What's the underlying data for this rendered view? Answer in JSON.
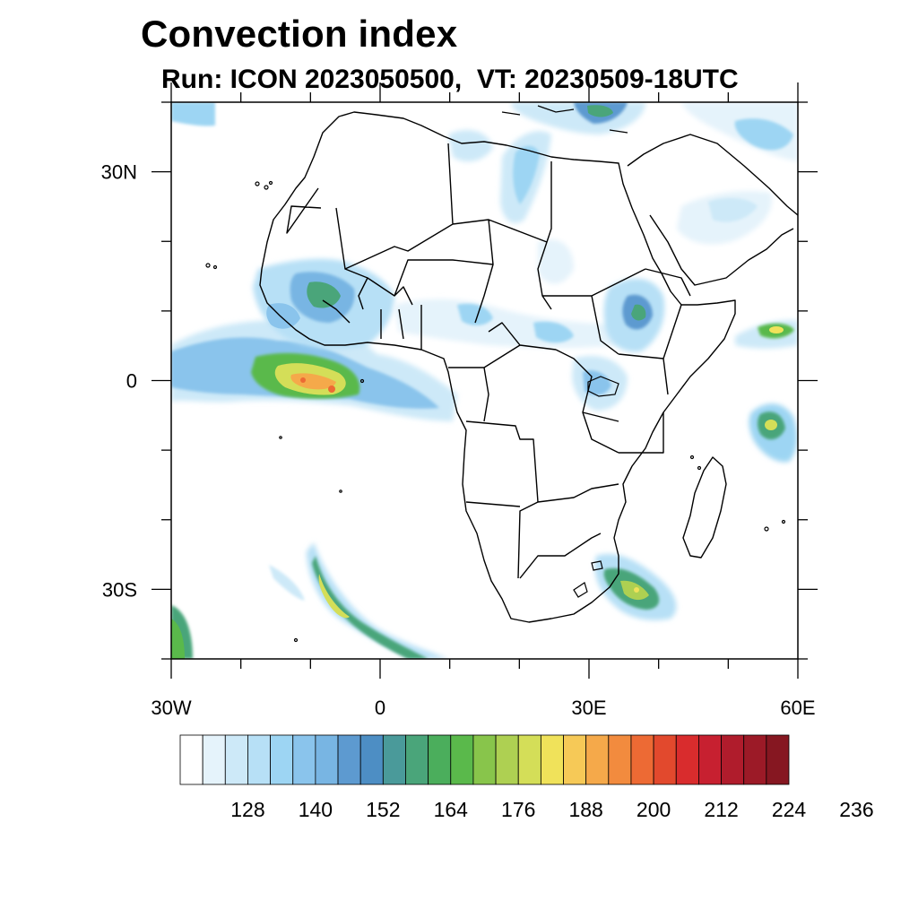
{
  "title": "Convection index",
  "subtitle": "Run: ICON 2023050500,  VT: 20230509-18UTC",
  "map": {
    "lon_range": [
      -30,
      60
    ],
    "lat_range": [
      -40,
      40
    ],
    "lat_ticks": [
      {
        "value": 30,
        "label": "30N"
      },
      {
        "value": 0,
        "label": "0"
      },
      {
        "value": -30,
        "label": "30S"
      }
    ],
    "lon_ticks": [
      {
        "value": -30,
        "label": "30W"
      },
      {
        "value": 0,
        "label": "0"
      },
      {
        "value": 30,
        "label": "30E"
      },
      {
        "value": 60,
        "label": "60E"
      }
    ],
    "minor_tick_step_deg": 10,
    "convection_areas": [
      {
        "region": "Gulf of Guinea / equatorial Atlantic",
        "lon": -5,
        "lat": -1,
        "peak_level": 212
      },
      {
        "region": "South Atlantic band",
        "lon": -6,
        "lat": -32,
        "peak_level": 182
      },
      {
        "region": "Southwest Indian Ocean off South Africa",
        "lon": 34,
        "lat": -30,
        "peak_level": 176
      },
      {
        "region": "Indian Ocean east of Madagascar",
        "lon": 55,
        "lat": -7,
        "peak_level": 182
      },
      {
        "region": "West African coast",
        "lon": -12,
        "lat": 12,
        "peak_level": 164
      },
      {
        "region": "Ethiopian highlands",
        "lon": 37,
        "lat": 10,
        "peak_level": 164
      },
      {
        "region": "Mediterranean / Turkey",
        "lon": 28,
        "lat": 38,
        "peak_level": 164
      },
      {
        "region": "Arabian Sea",
        "lon": 56,
        "lat": 7,
        "peak_level": 188
      }
    ]
  },
  "colorbar": {
    "colors": [
      "#ffffff",
      "#e5f3fb",
      "#cde9f8",
      "#b7e0f6",
      "#9dd5f3",
      "#8ac4ec",
      "#78b5e3",
      "#5d9ad0",
      "#4d8ec4",
      "#4a9a9a",
      "#4aa57a",
      "#4bae5c",
      "#5ab94b",
      "#88c54b",
      "#aed052",
      "#d4de58",
      "#f0e25a",
      "#f6c957",
      "#f5a94a",
      "#f28b3e",
      "#ed6a34",
      "#e2492d",
      "#d92c2d",
      "#c72030",
      "#b01c2c",
      "#9c1a27",
      "#861721"
    ],
    "labels": [
      "128",
      "140",
      "152",
      "164",
      "176",
      "188",
      "200",
      "212",
      "224",
      "236"
    ]
  }
}
